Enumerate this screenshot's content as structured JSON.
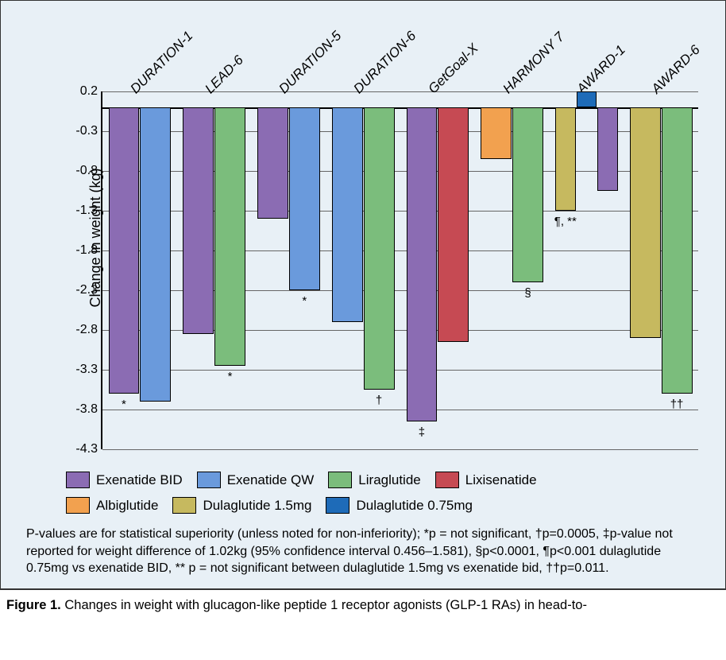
{
  "chart": {
    "type": "bar",
    "ylabel": "Change in weight (kg)",
    "ylim": [
      -4.3,
      0.2
    ],
    "yticks": [
      0.2,
      -0.3,
      -0.8,
      -1.3,
      -1.8,
      -2.3,
      -2.8,
      -3.3,
      -3.8,
      -4.3
    ],
    "background": "#e8f0f6",
    "grid_color": "#666666",
    "axis_color": "#000000",
    "bar_border": "#000000",
    "tick_fontsize": 16,
    "label_fontsize": 18,
    "group_label_fontsize": 17,
    "annot_fontsize": 15,
    "colors": {
      "exenatide_bid": "#8b6cb3",
      "exenatide_qw": "#6a9adc",
      "liraglutide": "#7bbd7c",
      "lixisenatide": "#c64a53",
      "albiglutide": "#f2a14f",
      "dulaglutide_15": "#c6b95f",
      "dulaglutide_075": "#1e6bb8"
    },
    "groups": [
      {
        "label": "DURATION-1",
        "bars": [
          {
            "series": "exenatide_bid",
            "value": -3.6,
            "annot": "*"
          },
          {
            "series": "exenatide_qw",
            "value": -3.7
          }
        ]
      },
      {
        "label": "LEAD-6",
        "bars": [
          {
            "series": "exenatide_bid",
            "value": -2.85
          },
          {
            "series": "liraglutide",
            "value": -3.25,
            "annot": "*"
          }
        ]
      },
      {
        "label": "DURATION-5",
        "bars": [
          {
            "series": "exenatide_bid",
            "value": -1.4
          },
          {
            "series": "exenatide_qw",
            "value": -2.3,
            "annot": "*"
          }
        ]
      },
      {
        "label": "DURATION-6",
        "bars": [
          {
            "series": "exenatide_qw",
            "value": -2.7
          },
          {
            "series": "liraglutide",
            "value": -3.55,
            "annot": "†"
          }
        ]
      },
      {
        "label": "GetGoal-X",
        "bars": [
          {
            "series": "exenatide_bid",
            "value": -3.95,
            "annot": "‡"
          },
          {
            "series": "lixisenatide",
            "value": -2.95
          }
        ]
      },
      {
        "label": "HARMONY 7",
        "bars": [
          {
            "series": "albiglutide",
            "value": -0.65
          },
          {
            "series": "liraglutide",
            "value": -2.2,
            "annot": "§"
          }
        ]
      },
      {
        "label": "AWARD-1",
        "bars": [
          {
            "series": "dulaglutide_15",
            "value": -1.3,
            "annot": "¶, **"
          },
          {
            "series": "dulaglutide_075",
            "value": 0.2
          },
          {
            "series": "exenatide_bid",
            "value": -1.05
          }
        ]
      },
      {
        "label": "AWARD-6",
        "bars": [
          {
            "series": "dulaglutide_15",
            "value": -2.9
          },
          {
            "series": "liraglutide",
            "value": -3.6,
            "annot": "††"
          }
        ]
      }
    ]
  },
  "legend": {
    "items": [
      {
        "series": "exenatide_bid",
        "label": "Exenatide BID"
      },
      {
        "series": "exenatide_qw",
        "label": "Exenatide QW"
      },
      {
        "series": "liraglutide",
        "label": "Liraglutide"
      },
      {
        "series": "lixisenatide",
        "label": "Lixisenatide"
      },
      {
        "series": "albiglutide",
        "label": "Albiglutide"
      },
      {
        "series": "dulaglutide_15",
        "label": "Dulaglutide 1.5mg"
      },
      {
        "series": "dulaglutide_075",
        "label": "Dulaglutide 0.75mg"
      }
    ],
    "row_breaks": [
      4
    ]
  },
  "footnote": "P-values are for statistical superiority (unless noted for non-inferiority); *p = not significant, †p=0.0005, ‡p-value not reported for weight difference of 1.02kg (95% confidence interval 0.456–1.581), §p<0.0001, ¶p<0.001 dulaglutide 0.75mg vs exenatide BID, ** p = not significant between dulaglutide 1.5mg vs exenatide bid, ††p=0.011.",
  "caption_bold": "Figure 1.",
  "caption_rest": " Changes in weight with glucagon-like peptide 1 receptor agonists (GLP-1 RAs) in head-to-"
}
